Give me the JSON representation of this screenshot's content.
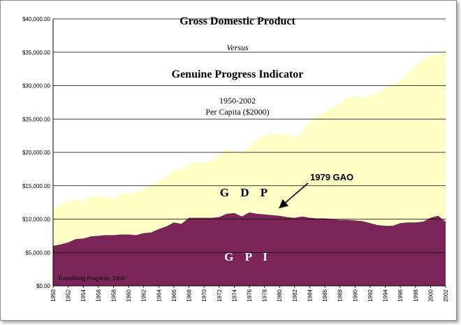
{
  "chart_data": {
    "type": "area",
    "title": "Gross Domestic Product",
    "subtitle_versus": "Versus",
    "title2": "Genuine Progress Indicator",
    "period": "1950-2002",
    "unit": "Per Capita ($2000)",
    "ylim": [
      0,
      40000
    ],
    "yticks": [
      "$0.00",
      "$5,000.00",
      "$10,000.00",
      "$15,000.00",
      "$20,000.00",
      "$25,000.00",
      "$30,000.00",
      "$35,000.00",
      "$40,000.00"
    ],
    "xticks": [
      "1950",
      "1952",
      "1954",
      "1956",
      "1958",
      "1960",
      "1962",
      "1964",
      "1966",
      "1968",
      "1970",
      "1972",
      "1974",
      "1976",
      "1978",
      "1980",
      "1982",
      "1984",
      "1986",
      "1988",
      "1990",
      "1992",
      "1994",
      "1996",
      "1998",
      "2000",
      "2002"
    ],
    "x": [
      1950,
      1951,
      1952,
      1953,
      1954,
      1955,
      1956,
      1957,
      1958,
      1959,
      1960,
      1961,
      1962,
      1963,
      1964,
      1965,
      1966,
      1967,
      1968,
      1969,
      1970,
      1971,
      1972,
      1973,
      1974,
      1975,
      1976,
      1977,
      1978,
      1979,
      1980,
      1981,
      1982,
      1983,
      1984,
      1985,
      1986,
      1987,
      1988,
      1989,
      1990,
      1991,
      1992,
      1993,
      1994,
      1995,
      1996,
      1997,
      1998,
      1999,
      2000,
      2001,
      2002
    ],
    "series": [
      {
        "name": "GDP",
        "color": "#ffffc6",
        "values": [
          11500,
          12300,
          12600,
          13000,
          12600,
          13400,
          13400,
          13400,
          13000,
          13800,
          13900,
          13900,
          14500,
          15000,
          15600,
          16400,
          17300,
          17600,
          18200,
          18600,
          18400,
          18800,
          19500,
          20500,
          20200,
          19900,
          20900,
          21800,
          22600,
          22900,
          22600,
          22900,
          22200,
          23100,
          24700,
          25400,
          26000,
          26700,
          27400,
          28200,
          28500,
          28100,
          28500,
          28900,
          29700,
          30100,
          30700,
          31800,
          32800,
          33800,
          34700,
          34600,
          35000
        ]
      },
      {
        "name": "GPI",
        "color": "#7a2458",
        "values": [
          6000,
          6200,
          6500,
          7000,
          7100,
          7400,
          7500,
          7600,
          7600,
          7700,
          7700,
          7600,
          7900,
          8000,
          8500,
          8900,
          9500,
          9300,
          10200,
          10200,
          10200,
          10200,
          10300,
          10800,
          10900,
          10400,
          11000,
          10800,
          10700,
          10600,
          10500,
          10300,
          10200,
          10400,
          10200,
          10100,
          10100,
          10000,
          9900,
          9900,
          9800,
          9700,
          9400,
          9100,
          9000,
          9000,
          9400,
          9500,
          9500,
          9600,
          10200,
          10500,
          9600
        ]
      }
    ],
    "series_labels": {
      "gdp": "G D P",
      "gpi": "G P I"
    },
    "annotation": "1979 GAO",
    "source": "Redefining Progress, 2004",
    "grid": "horizontal"
  }
}
